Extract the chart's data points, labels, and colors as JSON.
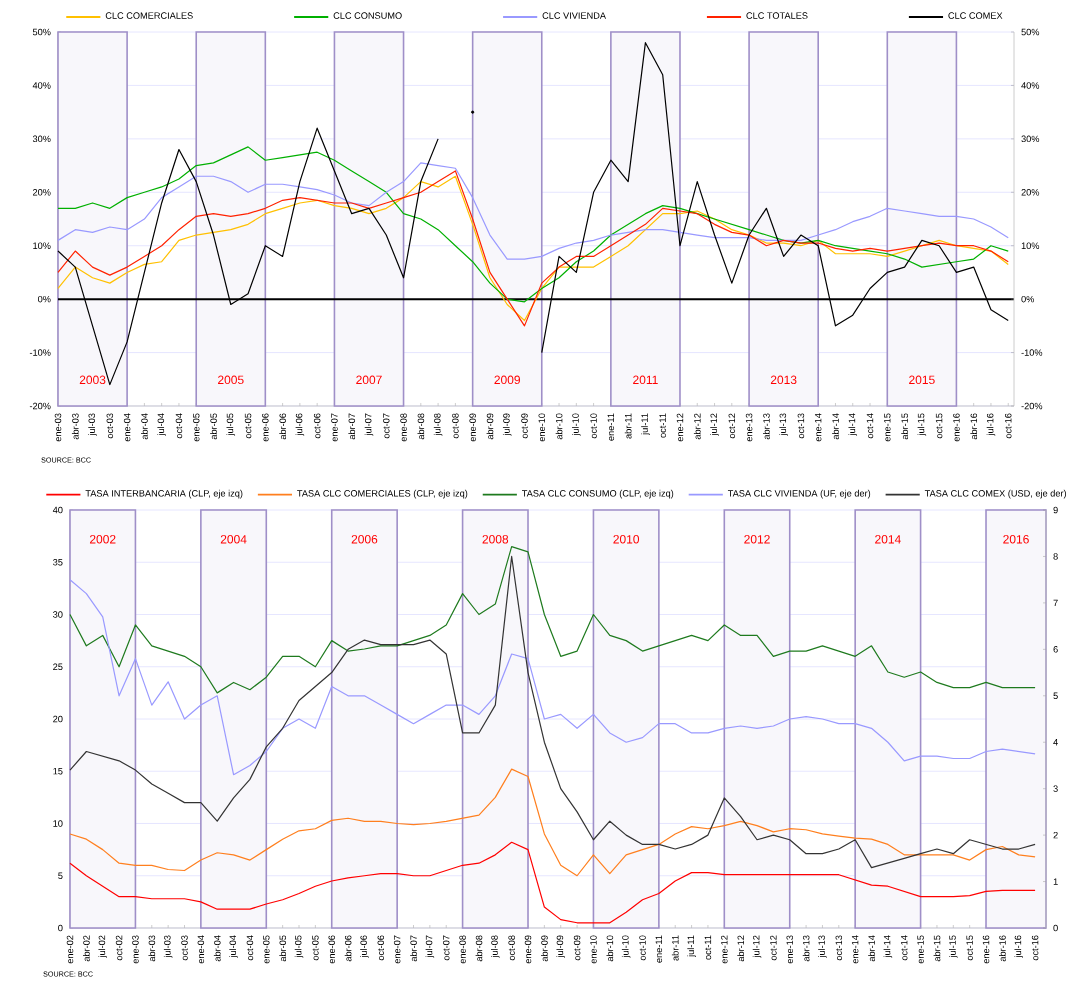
{
  "chart_data": [
    {
      "type": "line",
      "legend": "top",
      "grid": "y",
      "x": [
        "2003-01",
        "2003-04",
        "2003-07",
        "2003-10",
        "2004-01",
        "2004-04",
        "2004-07",
        "2004-10",
        "2005-01",
        "2005-04",
        "2005-07",
        "2005-10",
        "2006-01",
        "2006-04",
        "2006-07",
        "2006-10",
        "2007-01",
        "2007-04",
        "2007-07",
        "2007-10",
        "2008-01",
        "2008-04",
        "2008-07",
        "2008-10",
        "2009-01",
        "2009-04",
        "2009-07",
        "2009-10",
        "2010-01",
        "2010-04",
        "2010-07",
        "2010-10",
        "2011-01",
        "2011-04",
        "2011-07",
        "2011-10",
        "2012-01",
        "2012-04",
        "2012-07",
        "2012-10",
        "2013-01",
        "2013-04",
        "2013-07",
        "2013-10",
        "2014-01",
        "2014-04",
        "2014-07",
        "2014-10",
        "2015-01",
        "2015-04",
        "2015-07",
        "2015-10",
        "2016-01",
        "2016-04",
        "2016-07",
        "2016-10"
      ],
      "xlim": [
        "2003-01",
        "2016-11"
      ],
      "xticks": [
        {
          "value": "2003-01",
          "label": "ene-03"
        },
        {
          "value": "2003-04",
          "label": "abr-03"
        },
        {
          "value": "2003-07",
          "label": "jul-03"
        },
        {
          "value": "2003-10",
          "label": "oct-03"
        },
        {
          "value": "2004-01",
          "label": "ene-04"
        },
        {
          "value": "2004-04",
          "label": "abr-04"
        },
        {
          "value": "2004-07",
          "label": "jul-04"
        },
        {
          "value": "2004-10",
          "label": "oct-04"
        },
        {
          "value": "2005-01",
          "label": "ene-05"
        },
        {
          "value": "2005-04",
          "label": "abr-05"
        },
        {
          "value": "2005-07",
          "label": "jul-05"
        },
        {
          "value": "2005-10",
          "label": "oct-05"
        },
        {
          "value": "2006-01",
          "label": "ene-06"
        },
        {
          "value": "2006-04",
          "label": "abr-06"
        },
        {
          "value": "2006-07",
          "label": "jul-06"
        },
        {
          "value": "2006-10",
          "label": "oct-06"
        },
        {
          "value": "2007-01",
          "label": "ene-07"
        },
        {
          "value": "2007-04",
          "label": "abr-07"
        },
        {
          "value": "2007-07",
          "label": "jul-07"
        },
        {
          "value": "2007-10",
          "label": "oct-07"
        },
        {
          "value": "2008-01",
          "label": "ene-08"
        },
        {
          "value": "2008-04",
          "label": "abr-08"
        },
        {
          "value": "2008-07",
          "label": "jul-08"
        },
        {
          "value": "2008-10",
          "label": "oct-08"
        },
        {
          "value": "2009-01",
          "label": "ene-09"
        },
        {
          "value": "2009-04",
          "label": "abr-09"
        },
        {
          "value": "2009-07",
          "label": "jul-09"
        },
        {
          "value": "2009-10",
          "label": "oct-09"
        },
        {
          "value": "2010-01",
          "label": "ene-10"
        },
        {
          "value": "2010-04",
          "label": "abr-10"
        },
        {
          "value": "2010-07",
          "label": "jul-10"
        },
        {
          "value": "2010-10",
          "label": "oct-10"
        },
        {
          "value": "2011-01",
          "label": "ene-11"
        },
        {
          "value": "2011-04",
          "label": "abr-11"
        },
        {
          "value": "2011-07",
          "label": "jul-11"
        },
        {
          "value": "2011-10",
          "label": "oct-11"
        },
        {
          "value": "2012-01",
          "label": "ene-12"
        },
        {
          "value": "2012-04",
          "label": "abr-12"
        },
        {
          "value": "2012-07",
          "label": "jul-12"
        },
        {
          "value": "2012-10",
          "label": "oct-12"
        },
        {
          "value": "2013-01",
          "label": "ene-13"
        },
        {
          "value": "2013-04",
          "label": "abr-13"
        },
        {
          "value": "2013-07",
          "label": "jul-13"
        },
        {
          "value": "2013-10",
          "label": "oct-13"
        },
        {
          "value": "2014-01",
          "label": "ene-14"
        },
        {
          "value": "2014-04",
          "label": "abr-14"
        },
        {
          "value": "2014-07",
          "label": "jul-14"
        },
        {
          "value": "2014-10",
          "label": "oct-14"
        },
        {
          "value": "2015-01",
          "label": "ene-15"
        },
        {
          "value": "2015-04",
          "label": "abr-15"
        },
        {
          "value": "2015-07",
          "label": "jul-15"
        },
        {
          "value": "2015-10",
          "label": "oct-15"
        },
        {
          "value": "2016-01",
          "label": "ene-16"
        },
        {
          "value": "2016-04",
          "label": "abr-16"
        },
        {
          "value": "2016-07",
          "label": "jul-16"
        },
        {
          "value": "2016-10",
          "label": "oct-16"
        }
      ],
      "ylim": [
        -20,
        50
      ],
      "yticks": [
        {
          "value": -20,
          "label": "-20%"
        },
        {
          "value": -10,
          "label": "-10%"
        },
        {
          "value": 0,
          "label": "0%"
        },
        {
          "value": 10,
          "label": "10%"
        },
        {
          "value": 20,
          "label": "20%"
        },
        {
          "value": 30,
          "label": "30%"
        },
        {
          "value": 40,
          "label": "40%"
        },
        {
          "value": 50,
          "label": "50%"
        }
      ],
      "y2lim": [
        -20,
        50
      ],
      "y2ticks": [
        {
          "value": -20,
          "label": "-20%"
        },
        {
          "value": -10,
          "label": "-10%"
        },
        {
          "value": 0,
          "label": "0%"
        },
        {
          "value": 10,
          "label": "10%"
        },
        {
          "value": 20,
          "label": "20%"
        },
        {
          "value": 30,
          "label": "30%"
        },
        {
          "value": 40,
          "label": "40%"
        },
        {
          "value": 50,
          "label": "50%"
        }
      ],
      "ref_lines": [
        {
          "axis": "y",
          "value": 0,
          "color": "#000000"
        }
      ],
      "bands": [
        {
          "axis": "x",
          "from": "2003-01",
          "to": "2004-01",
          "label": "2003",
          "color": "#9f8fc8"
        },
        {
          "axis": "x",
          "from": "2005-01",
          "to": "2006-01",
          "label": "2005",
          "color": "#9f8fc8"
        },
        {
          "axis": "x",
          "from": "2007-01",
          "to": "2008-01",
          "label": "2007",
          "color": "#9f8fc8"
        },
        {
          "axis": "x",
          "from": "2009-01",
          "to": "2010-01",
          "label": "2009",
          "color": "#9f8fc8"
        },
        {
          "axis": "x",
          "from": "2011-01",
          "to": "2012-01",
          "label": "2011",
          "color": "#9f8fc8"
        },
        {
          "axis": "x",
          "from": "2013-01",
          "to": "2014-01",
          "label": "2013",
          "color": "#9f8fc8"
        },
        {
          "axis": "x",
          "from": "2015-01",
          "to": "2016-01",
          "label": "2015",
          "color": "#9f8fc8"
        }
      ],
      "annotations": [
        "SOURCE: BCC"
      ],
      "series": [
        {
          "name": "CLC COMERCIALES",
          "color": "#ffc000",
          "values": [
            2,
            6,
            4,
            3,
            5,
            6.5,
            7,
            11,
            12,
            12.5,
            13,
            14,
            16,
            17,
            18,
            18.5,
            17.5,
            17,
            16,
            17,
            19,
            22,
            21,
            23,
            14,
            4,
            -1,
            -4,
            2,
            6,
            6,
            6,
            8,
            10,
            13,
            16,
            16,
            16.5,
            15,
            13,
            12,
            10.5,
            10.5,
            10,
            11,
            8.5,
            8.5,
            8.5,
            8,
            9,
            10,
            11,
            10,
            9.5,
            9,
            6.5
          ]
        },
        {
          "name": "CLC CONSUMO",
          "color": "#00b000",
          "values": [
            17,
            17,
            18,
            17,
            19,
            20,
            21,
            22.5,
            25,
            25.5,
            27,
            28.5,
            26,
            26.5,
            27,
            27.5,
            26,
            24,
            22,
            20,
            16,
            15,
            13,
            10,
            7,
            3,
            0,
            -0.5,
            2,
            4,
            7,
            9,
            12,
            14,
            16,
            17.5,
            17,
            16,
            15,
            14,
            13,
            12,
            11,
            10.5,
            11,
            10,
            9.5,
            9,
            8.5,
            7.5,
            6,
            6.5,
            7,
            7.5,
            10,
            9
          ]
        },
        {
          "name": "CLC VIVIENDA",
          "color": "#9999ff",
          "values": [
            11,
            13,
            12.5,
            13.5,
            13,
            15,
            19,
            21,
            23,
            23,
            22,
            20,
            21.5,
            21.5,
            21,
            20.5,
            19.5,
            18,
            17.5,
            20,
            22,
            25.5,
            25,
            24.5,
            19,
            12,
            7.5,
            7.5,
            8,
            9.5,
            10.5,
            11,
            12,
            12.5,
            13,
            13,
            12.5,
            12,
            11.5,
            11.5,
            11.5,
            11,
            11,
            11,
            12,
            13,
            14.5,
            15.5,
            17,
            16.5,
            16,
            15.5,
            15.5,
            15,
            13.5,
            11.5
          ]
        },
        {
          "name": "CLC TOTALES",
          "color": "#ff2200",
          "values": [
            5,
            9,
            6,
            4.5,
            6,
            8,
            10,
            13,
            15.5,
            16,
            15.5,
            16,
            17,
            18.5,
            19,
            18.5,
            18,
            18,
            17,
            18,
            19,
            20,
            22,
            24,
            15,
            5,
            0,
            -5,
            3,
            6,
            8,
            8,
            10,
            12,
            14,
            17,
            16.5,
            16,
            14,
            12.5,
            12,
            10,
            11,
            10.5,
            10.5,
            9.5,
            9,
            9.5,
            9,
            9.5,
            10,
            10.5,
            10,
            10,
            9,
            7
          ]
        },
        {
          "name": "CLC COMEX",
          "color": "#000000",
          "values": [
            9,
            6,
            -5,
            -16,
            -8,
            5,
            18,
            28,
            22,
            12,
            -1,
            1,
            10,
            8,
            22,
            32,
            24,
            16,
            17,
            12,
            4,
            22,
            30,
            null,
            35,
            null,
            null,
            null,
            -10,
            8,
            5,
            20,
            26,
            22,
            48,
            42,
            10,
            22,
            12,
            3,
            12,
            17,
            8,
            12,
            10,
            -5,
            -3,
            2,
            5,
            6,
            11,
            10,
            5,
            6,
            -2,
            -4
          ]
        }
      ]
    },
    {
      "type": "line",
      "legend": "top",
      "grid": "y",
      "x": [
        "2002-01",
        "2002-04",
        "2002-07",
        "2002-10",
        "2003-01",
        "2003-04",
        "2003-07",
        "2003-10",
        "2004-01",
        "2004-04",
        "2004-07",
        "2004-10",
        "2005-01",
        "2005-04",
        "2005-07",
        "2005-10",
        "2006-01",
        "2006-04",
        "2006-07",
        "2006-10",
        "2007-01",
        "2007-04",
        "2007-07",
        "2007-10",
        "2008-01",
        "2008-04",
        "2008-07",
        "2008-10",
        "2009-01",
        "2009-04",
        "2009-07",
        "2009-10",
        "2010-01",
        "2010-04",
        "2010-07",
        "2010-10",
        "2011-01",
        "2011-04",
        "2011-07",
        "2011-10",
        "2012-01",
        "2012-04",
        "2012-07",
        "2012-10",
        "2013-01",
        "2013-04",
        "2013-07",
        "2013-10",
        "2014-01",
        "2014-04",
        "2014-07",
        "2014-10",
        "2015-01",
        "2015-04",
        "2015-07",
        "2015-10",
        "2016-01",
        "2016-04",
        "2016-07",
        "2016-10"
      ],
      "xlim": [
        "2002-01",
        "2016-12"
      ],
      "xticks": [
        {
          "value": "2002-01",
          "label": "ene-02"
        },
        {
          "value": "2002-04",
          "label": "abr-02"
        },
        {
          "value": "2002-07",
          "label": "jul-02"
        },
        {
          "value": "2002-10",
          "label": "oct-02"
        },
        {
          "value": "2003-01",
          "label": "ene-03"
        },
        {
          "value": "2003-04",
          "label": "abr-03"
        },
        {
          "value": "2003-07",
          "label": "jul-03"
        },
        {
          "value": "2003-10",
          "label": "oct-03"
        },
        {
          "value": "2004-01",
          "label": "ene-04"
        },
        {
          "value": "2004-04",
          "label": "abr-04"
        },
        {
          "value": "2004-07",
          "label": "jul-04"
        },
        {
          "value": "2004-10",
          "label": "oct-04"
        },
        {
          "value": "2005-01",
          "label": "ene-05"
        },
        {
          "value": "2005-04",
          "label": "abr-05"
        },
        {
          "value": "2005-07",
          "label": "jul-05"
        },
        {
          "value": "2005-10",
          "label": "oct-05"
        },
        {
          "value": "2006-01",
          "label": "ene-06"
        },
        {
          "value": "2006-04",
          "label": "abr-06"
        },
        {
          "value": "2006-07",
          "label": "jul-06"
        },
        {
          "value": "2006-10",
          "label": "oct-06"
        },
        {
          "value": "2007-01",
          "label": "ene-07"
        },
        {
          "value": "2007-04",
          "label": "abr-07"
        },
        {
          "value": "2007-07",
          "label": "jul-07"
        },
        {
          "value": "2007-10",
          "label": "oct-07"
        },
        {
          "value": "2008-01",
          "label": "ene-08"
        },
        {
          "value": "2008-04",
          "label": "abr-08"
        },
        {
          "value": "2008-07",
          "label": "jul-08"
        },
        {
          "value": "2008-10",
          "label": "oct-08"
        },
        {
          "value": "2009-01",
          "label": "ene-09"
        },
        {
          "value": "2009-04",
          "label": "abr-09"
        },
        {
          "value": "2009-07",
          "label": "jul-09"
        },
        {
          "value": "2009-10",
          "label": "oct-09"
        },
        {
          "value": "2010-01",
          "label": "ene-10"
        },
        {
          "value": "2010-04",
          "label": "abr-10"
        },
        {
          "value": "2010-07",
          "label": "jul-10"
        },
        {
          "value": "2010-10",
          "label": "oct-10"
        },
        {
          "value": "2011-01",
          "label": "ene-11"
        },
        {
          "value": "2011-04",
          "label": "abr-11"
        },
        {
          "value": "2011-07",
          "label": "jul-11"
        },
        {
          "value": "2011-10",
          "label": "oct-11"
        },
        {
          "value": "2012-01",
          "label": "ene-12"
        },
        {
          "value": "2012-04",
          "label": "abr-12"
        },
        {
          "value": "2012-07",
          "label": "jul-12"
        },
        {
          "value": "2012-10",
          "label": "oct-12"
        },
        {
          "value": "2013-01",
          "label": "ene-13"
        },
        {
          "value": "2013-04",
          "label": "abr-13"
        },
        {
          "value": "2013-07",
          "label": "jul-13"
        },
        {
          "value": "2013-10",
          "label": "oct-13"
        },
        {
          "value": "2014-01",
          "label": "ene-14"
        },
        {
          "value": "2014-04",
          "label": "abr-14"
        },
        {
          "value": "2014-07",
          "label": "jul-14"
        },
        {
          "value": "2014-10",
          "label": "oct-14"
        },
        {
          "value": "2015-01",
          "label": "ene-15"
        },
        {
          "value": "2015-04",
          "label": "abr-15"
        },
        {
          "value": "2015-07",
          "label": "jul-15"
        },
        {
          "value": "2015-10",
          "label": "oct-15"
        },
        {
          "value": "2016-01",
          "label": "ene-16"
        },
        {
          "value": "2016-04",
          "label": "abr-16"
        },
        {
          "value": "2016-07",
          "label": "jul-16"
        },
        {
          "value": "2016-10",
          "label": "oct-16"
        }
      ],
      "ylim": [
        0,
        40
      ],
      "yticks": [
        0,
        5,
        10,
        15,
        20,
        25,
        30,
        35,
        40
      ],
      "y2lim": [
        0,
        9
      ],
      "y2ticks": [
        0,
        1,
        2,
        3,
        4,
        5,
        6,
        7,
        8,
        9
      ],
      "bands": [
        {
          "axis": "x",
          "from": "2002-01",
          "to": "2003-01",
          "label": "2002",
          "color": "#9f8fc8"
        },
        {
          "axis": "x",
          "from": "2004-01",
          "to": "2005-01",
          "label": "2004",
          "color": "#9f8fc8"
        },
        {
          "axis": "x",
          "from": "2006-01",
          "to": "2007-01",
          "label": "2006",
          "color": "#9f8fc8"
        },
        {
          "axis": "x",
          "from": "2008-01",
          "to": "2009-01",
          "label": "2008",
          "color": "#9f8fc8"
        },
        {
          "axis": "x",
          "from": "2010-01",
          "to": "2011-01",
          "label": "2010",
          "color": "#9f8fc8"
        },
        {
          "axis": "x",
          "from": "2012-01",
          "to": "2013-01",
          "label": "2012",
          "color": "#9f8fc8"
        },
        {
          "axis": "x",
          "from": "2014-01",
          "to": "2015-01",
          "label": "2014",
          "color": "#9f8fc8"
        },
        {
          "axis": "x",
          "from": "2016-01",
          "to": "2016-12",
          "label": "2016",
          "color": "#9f8fc8"
        }
      ],
      "annotations": [
        "SOURCE: BCC"
      ],
      "series": [
        {
          "name": "TASA INTERBANCARIA (CLP, eje izq)",
          "color": "#ff0000",
          "values": [
            6.2,
            5,
            4,
            3,
            3,
            2.8,
            2.8,
            2.8,
            2.5,
            1.8,
            1.8,
            1.8,
            2.3,
            2.7,
            3.3,
            4,
            4.5,
            4.8,
            5,
            5.2,
            5.2,
            5,
            5,
            5.5,
            6,
            6.2,
            7,
            8.2,
            7.5,
            2,
            0.8,
            0.5,
            0.5,
            0.5,
            1.5,
            2.7,
            3.3,
            4.5,
            5.3,
            5.3,
            5.1,
            5.1,
            5.1,
            5.1,
            5.1,
            5.1,
            5.1,
            5.1,
            4.6,
            4.1,
            4,
            3.5,
            3,
            3,
            3,
            3.1,
            3.5,
            3.6,
            3.6,
            3.6
          ]
        },
        {
          "name": "TASA CLC COMERCIALES (CLP, eje izq)",
          "color": "#ff7f1e",
          "values": [
            9,
            8.5,
            7.5,
            6.2,
            6,
            6,
            5.6,
            5.5,
            6.5,
            7.2,
            7,
            6.5,
            7.5,
            8.5,
            9.3,
            9.5,
            10.3,
            10.5,
            10.2,
            10.2,
            10,
            9.9,
            10,
            10.2,
            10.5,
            10.8,
            12.5,
            15.2,
            14.5,
            9,
            6,
            5,
            7,
            5.2,
            7,
            7.5,
            8,
            9,
            9.7,
            9.5,
            9.8,
            10.2,
            9.8,
            9.2,
            9.5,
            9.4,
            9,
            8.8,
            8.6,
            8.5,
            8,
            7,
            7,
            7,
            7,
            6.5,
            7.5,
            7.8,
            7,
            6.8
          ]
        },
        {
          "name": "TASA CLC CONSUMO (CLP, eje izq)",
          "color": "#1e7a1e",
          "values": [
            30,
            27,
            28,
            25,
            29,
            27,
            26.5,
            26,
            25,
            22.5,
            23.5,
            22.8,
            24,
            26,
            26,
            25,
            27.5,
            26.5,
            26.7,
            27,
            27,
            27.5,
            28,
            29,
            32,
            30,
            31,
            36.5,
            36,
            30,
            26,
            26.5,
            30,
            28,
            27.5,
            26.5,
            27,
            27.5,
            28,
            27.5,
            29,
            28,
            28,
            26,
            26.5,
            26.5,
            27,
            26.5,
            26,
            27,
            24.5,
            24,
            24.5,
            23.5,
            23,
            23,
            23.5,
            23,
            23,
            23
          ]
        },
        {
          "name": "TASA CLC VIVIENDA (UF, eje der)",
          "color": "#9999ff",
          "axis": "y2",
          "values": [
            7.5,
            7.2,
            6.7,
            5,
            5.8,
            4.8,
            5.3,
            4.5,
            4.8,
            5,
            3.3,
            3.5,
            3.8,
            4.3,
            4.5,
            4.3,
            5.2,
            5,
            5,
            4.8,
            4.6,
            4.4,
            4.6,
            4.8,
            4.8,
            4.6,
            5,
            5.9,
            5.8,
            4.5,
            4.6,
            4.3,
            4.6,
            4.2,
            4,
            4.1,
            4.4,
            4.4,
            4.2,
            4.2,
            4.3,
            4.35,
            4.3,
            4.35,
            4.5,
            4.55,
            4.5,
            4.4,
            4.4,
            4.3,
            4,
            3.6,
            3.7,
            3.7,
            3.65,
            3.65,
            3.8,
            3.85,
            3.8,
            3.75
          ]
        },
        {
          "name": "TASA CLC COMEX (USD, eje der)",
          "color": "#333333",
          "axis": "y2",
          "values": [
            3.4,
            3.8,
            3.7,
            3.6,
            3.4,
            3.1,
            2.9,
            2.7,
            2.7,
            2.3,
            2.8,
            3.2,
            3.9,
            4.3,
            4.9,
            5.2,
            5.5,
            6,
            6.2,
            6.1,
            6.1,
            6.1,
            6.2,
            5.9,
            4.2,
            4.2,
            4.8,
            8,
            5.5,
            4,
            3,
            2.5,
            1.9,
            2.3,
            2,
            1.8,
            1.8,
            1.7,
            1.8,
            2,
            2.8,
            2.4,
            1.9,
            2,
            1.9,
            1.6,
            1.6,
            1.7,
            1.9,
            1.3,
            1.4,
            1.5,
            1.6,
            1.7,
            1.6,
            1.9,
            1.8,
            1.7,
            1.7,
            1.8
          ]
        }
      ]
    }
  ]
}
